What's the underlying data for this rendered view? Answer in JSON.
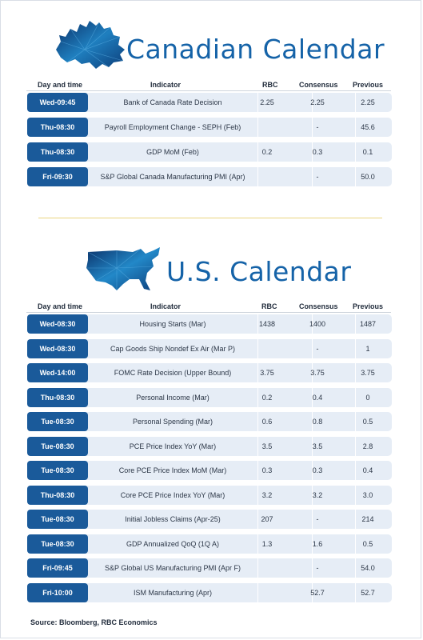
{
  "canadian": {
    "title": "Canadian Calendar",
    "headers": {
      "day_time": "Day and time",
      "indicator": "Indicator",
      "rbc": "RBC",
      "consensus": "Consensus",
      "previous": "Previous"
    },
    "rows": [
      {
        "time": "Wed-09:45",
        "indicator": "Bank of Canada Rate Decision",
        "rbc": "2.25",
        "consensus": "2.25",
        "previous": "2.25"
      },
      {
        "time": "Thu-08:30",
        "indicator": "Payroll Employment Change - SEPH (Feb)",
        "rbc": "",
        "consensus": "-",
        "previous": "45.6"
      },
      {
        "time": "Thu-08:30",
        "indicator": "GDP MoM (Feb)",
        "rbc": "0.2",
        "consensus": "0.3",
        "previous": "0.1"
      },
      {
        "time": "Fri-09:30",
        "indicator": "S&P Global Canada Manufacturing PMI (Apr)",
        "rbc": "",
        "consensus": "-",
        "previous": "50.0"
      }
    ]
  },
  "us": {
    "title": "U.S. Calendar",
    "headers": {
      "day_time": "Day and time",
      "indicator": "Indicator",
      "rbc": "RBC",
      "consensus": "Consensus",
      "previous": "Previous"
    },
    "rows": [
      {
        "time": "Wed-08:30",
        "indicator": "Housing Starts (Mar)",
        "rbc": "1438",
        "consensus": "1400",
        "previous": "1487"
      },
      {
        "time": "Wed-08:30",
        "indicator": "Cap Goods Ship Nondef Ex Air (Mar P)",
        "rbc": "",
        "consensus": "-",
        "previous": "1"
      },
      {
        "time": "Wed-14:00",
        "indicator": "FOMC Rate Decision (Upper Bound)",
        "rbc": "3.75",
        "consensus": "3.75",
        "previous": "3.75"
      },
      {
        "time": "Thu-08:30",
        "indicator": "Personal Income (Mar)",
        "rbc": "0.2",
        "consensus": "0.4",
        "previous": "0"
      },
      {
        "time": "Tue-08:30",
        "indicator": "Personal Spending (Mar)",
        "rbc": "0.6",
        "consensus": "0.8",
        "previous": "0.5"
      },
      {
        "time": "Tue-08:30",
        "indicator": "PCE Price Index YoY (Mar)",
        "rbc": "3.5",
        "consensus": "3.5",
        "previous": "2.8"
      },
      {
        "time": "Tue-08:30",
        "indicator": "Core PCE Price Index MoM (Mar)",
        "rbc": "0.3",
        "consensus": "0.3",
        "previous": "0.4"
      },
      {
        "time": "Thu-08:30",
        "indicator": "Core PCE Price Index YoY (Mar)",
        "rbc": "3.2",
        "consensus": "3.2",
        "previous": "3.0"
      },
      {
        "time": "Tue-08:30",
        "indicator": "Initial Jobless Claims (Apr-25)",
        "rbc": "207",
        "consensus": "-",
        "previous": "214"
      },
      {
        "time": "Tue-08:30",
        "indicator": "GDP Annualized QoQ (1Q A)",
        "rbc": "1.3",
        "consensus": "1.6",
        "previous": "0.5"
      },
      {
        "time": "Fri-09:45",
        "indicator": "S&P Global US Manufacturing PMI (Apr F)",
        "rbc": "",
        "consensus": "-",
        "previous": "54.0"
      },
      {
        "time": "Fri-10:00",
        "indicator": "ISM Manufacturing (Apr)",
        "rbc": "",
        "consensus": "52.7",
        "previous": "52.7"
      }
    ]
  },
  "source": "Source: Bloomberg, RBC Economics",
  "colors": {
    "title": "#1563a8",
    "time_cell": "#1a5a9a",
    "row_bg": "#e6edf6",
    "divider": "#e9d57e"
  },
  "icons": {
    "canada_map": "canada-map-icon",
    "us_map": "us-map-icon"
  }
}
